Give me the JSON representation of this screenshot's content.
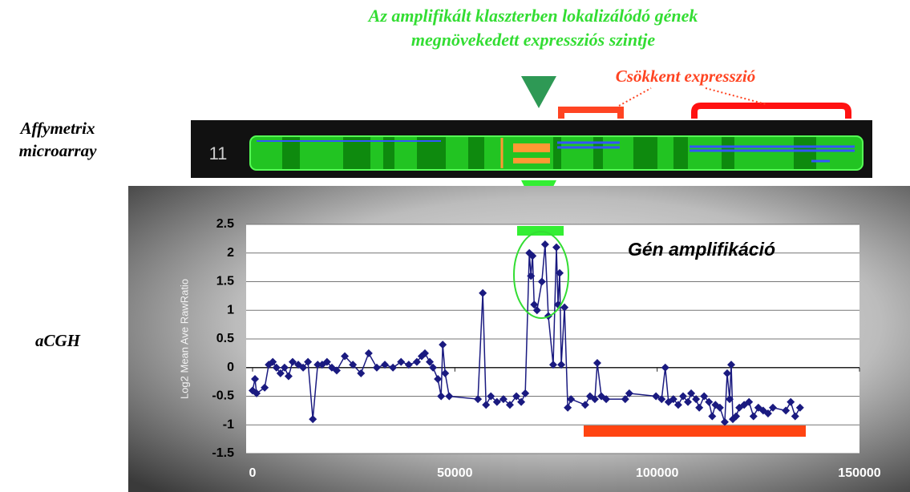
{
  "header": {
    "lines": [
      "Az amplifikált klaszterben lokalizálódó gének",
      "megnövekedett expressziós szintje"
    ]
  },
  "labels": {
    "decreased": "Csökkent expresszió",
    "affymetrix": [
      "Affymetrix",
      "microarray"
    ],
    "acgh": "aCGH",
    "chromosome": "11"
  },
  "chart_data": {
    "type": "line",
    "y_label": "Log2 Mean Ave RawRatio",
    "annotation": "Gén amplifikáció",
    "color": "#1a1a80",
    "grid": true,
    "xlim": [
      0,
      150000
    ],
    "xticks": [
      0,
      50000,
      100000,
      150000
    ],
    "ylim": [
      -1.5,
      2.5
    ],
    "yticks": [
      -1.5,
      -1,
      -0.5,
      0,
      0.5,
      1,
      1.5,
      2,
      2.5
    ],
    "x": [
      0,
      600,
      1000,
      3000,
      4000,
      5000,
      5900,
      6900,
      7900,
      8900,
      9900,
      11300,
      12500,
      13700,
      14900,
      16100,
      17200,
      18400,
      19600,
      20800,
      22800,
      24800,
      26800,
      28700,
      30700,
      32700,
      34700,
      36700,
      38600,
      40600,
      41800,
      42600,
      43800,
      44600,
      45800,
      46600,
      47000,
      47600,
      48600,
      55700,
      56900,
      57700,
      58900,
      60400,
      62000,
      63600,
      65200,
      66400,
      67400,
      68400,
      68800,
      69200,
      69600,
      70300,
      71500,
      72300,
      73100,
      74300,
      75100,
      75500,
      75900,
      76300,
      77100,
      77900,
      78700,
      82200,
      83400,
      84600,
      85200,
      86200,
      87400,
      92100,
      93100,
      99700,
      101100,
      102000,
      102800,
      104000,
      105200,
      106400,
      107600,
      108400,
      109600,
      110400,
      111600,
      112800,
      113600,
      114400,
      115500,
      116700,
      117300,
      117900,
      118300,
      118700,
      119500,
      120300,
      121500,
      122700,
      123800,
      125000,
      126200,
      127400,
      128600,
      131800,
      133000,
      134100,
      135300
    ],
    "values": [
      -0.4,
      -0.2,
      -0.45,
      -0.35,
      0.05,
      0.1,
      0.0,
      -0.1,
      0.0,
      -0.15,
      0.1,
      0.05,
      0.0,
      0.1,
      -0.9,
      0.05,
      0.05,
      0.1,
      0.0,
      -0.05,
      0.2,
      0.05,
      -0.1,
      0.25,
      0.0,
      0.05,
      0.0,
      0.1,
      0.05,
      0.1,
      0.2,
      0.25,
      0.1,
      0.0,
      -0.2,
      -0.5,
      0.4,
      -0.1,
      -0.5,
      -0.55,
      1.3,
      -0.65,
      -0.5,
      -0.6,
      -0.55,
      -0.65,
      -0.5,
      -0.6,
      -0.45,
      2.0,
      1.6,
      1.95,
      1.1,
      1.0,
      1.5,
      2.15,
      0.9,
      0.05,
      2.1,
      1.1,
      1.65,
      0.05,
      1.05,
      -0.7,
      -0.55,
      -0.65,
      -0.5,
      -0.55,
      0.08,
      -0.5,
      -0.55,
      -0.55,
      -0.45,
      -0.5,
      -0.55,
      0.0,
      -0.6,
      -0.55,
      -0.65,
      -0.5,
      -0.6,
      -0.45,
      -0.55,
      -0.7,
      -0.5,
      -0.6,
      -0.85,
      -0.65,
      -0.7,
      -0.95,
      -0.1,
      -0.55,
      0.05,
      -0.9,
      -0.85,
      -0.7,
      -0.65,
      -0.6,
      -0.85,
      -0.7,
      -0.75,
      -0.8,
      -0.7,
      -0.75,
      -0.6,
      -0.85,
      -0.7
    ]
  }
}
